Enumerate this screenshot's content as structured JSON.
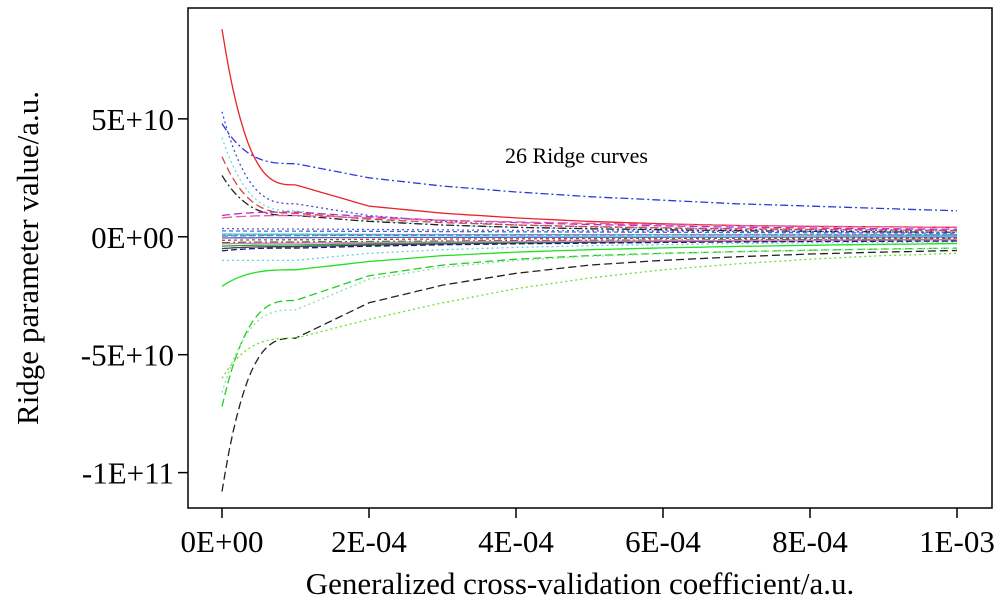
{
  "chart_data": {
    "type": "line",
    "title": "",
    "xlabel": "Generalized cross-validation coefficient/a.u.",
    "ylabel": "Ridge parameter value/a.u.",
    "annotation": "26 Ridge curves",
    "xlim": [
      0,
      0.001
    ],
    "ylim": [
      -115000000000,
      97000000000
    ],
    "x_ticks": [
      0,
      0.0002,
      0.0004,
      0.0006,
      0.0008,
      0.001
    ],
    "x_tick_labels": [
      "0E+00",
      "2E-04",
      "4E-04",
      "6E-04",
      "8E-04",
      "1E-03"
    ],
    "y_ticks": [
      50000000000,
      0,
      -50000000000,
      -100000000000
    ],
    "y_tick_labels": [
      "5E+10",
      "0E+00",
      "-5E+10",
      "-1E+11"
    ],
    "grid": false,
    "legend": "none",
    "x": [
      0,
      0.0001,
      0.0002,
      0.0003,
      0.0004,
      0.0005,
      0.0006,
      0.0007,
      0.0008,
      0.0009,
      0.001
    ],
    "series": [
      {
        "color": "#e8232a",
        "dash": "solid",
        "values": [
          88000000000.0,
          22000000000.0,
          13000000000.0,
          10000000000.0,
          8000000000.0,
          6500000000.0,
          5500000000.0,
          4800000000.0,
          4400000000.0,
          4200000000.0,
          4000000000.0
        ]
      },
      {
        "color": "#2b3bd6",
        "dash": "8,3,2,3",
        "values": [
          48000000000.0,
          31000000000.0,
          25000000000.0,
          21500000000.0,
          19000000000.0,
          17000000000.0,
          15500000000.0,
          14000000000.0,
          13000000000.0,
          12000000000.0,
          11000000000.0
        ]
      },
      {
        "color": "#3d4fd8",
        "dash": "2,3",
        "values": [
          53000000000.0,
          14000000000.0,
          9000000000.0,
          6500000000.0,
          5000000000.0,
          4200000000.0,
          3600000000.0,
          3200000000.0,
          2900000000.0,
          2700000000.0,
          2500000000.0
        ]
      },
      {
        "color": "#66dde0",
        "dash": "2,3",
        "values": [
          42000000000.0,
          11000000000.0,
          7000000000.0,
          5000000000.0,
          4000000000.0,
          3300000000.0,
          2800000000.0,
          2400000000.0,
          2100000000.0,
          1900000000.0,
          1700000000.0
        ]
      },
      {
        "color": "#e0403f",
        "dash": "8,4",
        "values": [
          34000000000.0,
          10000000000.0,
          7500000000.0,
          6000000000.0,
          5000000000.0,
          4300000000.0,
          3800000000.0,
          3400000000.0,
          3100000000.0,
          2900000000.0,
          2700000000.0
        ]
      },
      {
        "color": "#222222",
        "dash": "8,3,2,3",
        "values": [
          26000000000.0,
          9000000000.0,
          6500000000.0,
          5000000000.0,
          4000000000.0,
          3400000000.0,
          3000000000.0,
          2600000000.0,
          2300000000.0,
          2100000000.0,
          1900000000.0
        ]
      },
      {
        "color": "#b030c8",
        "dash": "8,4",
        "values": [
          9000000000.0,
          10500000000.0,
          8500000000.0,
          7000000000.0,
          6000000000.0,
          5200000000.0,
          4600000000.0,
          4100000000.0,
          3700000000.0,
          3400000000.0,
          3200000000.0
        ]
      },
      {
        "color": "#e85aa0",
        "dash": "10,4",
        "values": [
          8000000000.0,
          9000000000.0,
          8000000000.0,
          7000000000.0,
          6300000000.0,
          5700000000.0,
          5200000000.0,
          4800000000.0,
          4500000000.0,
          4200000000.0,
          4000000000.0
        ]
      },
      {
        "color": "#444444",
        "dash": "solid",
        "values": [
          -5000000000.0,
          -4200000000.0,
          -3500000000.0,
          -3000000000.0,
          -2600000000.0,
          -2300000000.0,
          -2000000000.0,
          -1800000000.0,
          -1600000000.0,
          -1400000000.0,
          -1200000000.0
        ]
      },
      {
        "color": "#2f9c4a",
        "dash": "solid",
        "values": [
          -4000000000.0,
          -3500000000.0,
          -3000000000.0,
          -2600000000.0,
          -2300000000.0,
          -2000000000.0,
          -1800000000.0,
          -1600000000.0,
          -1400000000.0,
          -1300000000.0,
          -1200000000.0
        ]
      },
      {
        "color": "#5ad4e0",
        "dash": "2,3",
        "values": [
          -10000000000.0,
          -10000000000.0,
          -7000000000.0,
          -5500000000.0,
          -4500000000.0,
          -3800000000.0,
          -3300000000.0,
          -2900000000.0,
          -2600000000.0,
          -2400000000.0,
          -2200000000.0
        ]
      },
      {
        "color": "#20e020",
        "dash": "solid",
        "values": [
          -21000000000.0,
          -14000000000.0,
          -10500000000.0,
          -8000000000.0,
          -6500000000.0,
          -5500000000.0,
          -4700000000.0,
          -4100000000.0,
          -3600000000.0,
          -3200000000.0,
          -2900000000.0
        ]
      },
      {
        "color": "#20d020",
        "dash": "8,4",
        "values": [
          -72000000000.0,
          -27000000000.0,
          -16500000000.0,
          -12000000000.0,
          -9500000000.0,
          -8000000000.0,
          -7000000000.0,
          -6300000000.0,
          -5700000000.0,
          -5200000000.0,
          -4800000000.0
        ]
      },
      {
        "color": "#90e0a0",
        "dash": "2,3",
        "values": [
          -66000000000.0,
          -31000000000.0,
          -18000000000.0,
          -13000000000.0,
          -10000000000.0,
          -8300000000.0,
          -7200000000.0,
          -6400000000.0,
          -5800000000.0,
          -5300000000.0,
          -4900000000.0
        ]
      },
      {
        "color": "#222222",
        "dash": "8,4",
        "values": [
          -108000000000.0,
          -43000000000.0,
          -28000000000.0,
          -20500000000.0,
          -15500000000.0,
          -12000000000.0,
          -10000000000.0,
          -8500000000.0,
          -7300000000.0,
          -6500000000.0,
          -5800000000.0
        ]
      },
      {
        "color": "#6ae030",
        "dash": "2,3",
        "values": [
          -60000000000.0,
          -43000000000.0,
          -35000000000.0,
          -28000000000.0,
          -22000000000.0,
          -17500000000.0,
          -14000000000.0,
          -11500000000.0,
          -9500000000.0,
          -8000000000.0,
          -7000000000.0
        ]
      },
      {
        "color": "#3a6be0",
        "dash": "4,3",
        "values": [
          2500000000.0,
          2400000000.0,
          2300000000.0,
          2200000000.0,
          2100000000.0,
          2000000000.0,
          1900000000.0,
          1800000000.0,
          1700000000.0,
          1600000000.0,
          1500000000.0
        ]
      },
      {
        "color": "#40c8d8",
        "dash": "solid",
        "values": [
          1200000000.0,
          1100000000.0,
          1000000000.0,
          950000000.0,
          900000000.0,
          850000000.0,
          800000000.0,
          750000000.0,
          700000000.0,
          650000000.0,
          600000000.0
        ]
      },
      {
        "color": "#d040a0",
        "dash": "6,3",
        "values": [
          300000000.0,
          500000000.0,
          600000000.0,
          650000000.0,
          700000000.0,
          720000000.0,
          740000000.0,
          750000000.0,
          760000000.0,
          770000000.0,
          780000000.0
        ]
      },
      {
        "color": "#2a6fd0",
        "dash": "solid",
        "values": [
          -500000000.0,
          -400000000.0,
          -300000000.0,
          -250000000.0,
          -200000000.0,
          -180000000.0,
          -160000000.0,
          -140000000.0,
          -120000000.0,
          -100000000.0,
          -80000000.0
        ]
      },
      {
        "color": "#d03030",
        "dash": "3,3",
        "values": [
          -1500000000.0,
          -1300000000.0,
          -1100000000.0,
          -950000000.0,
          -850000000.0,
          -780000000.0,
          -720000000.0,
          -670000000.0,
          -630000000.0,
          -600000000.0,
          -570000000.0
        ]
      },
      {
        "color": "#208040",
        "dash": "8,3,2,3",
        "values": [
          -2500000000.0,
          -2200000000.0,
          -2000000000.0,
          -1800000000.0,
          -1650000000.0,
          -1500000000.0,
          -1400000000.0,
          -1300000000.0,
          -1200000000.0,
          -1100000000.0,
          -1000000000.0
        ]
      },
      {
        "color": "#7050d0",
        "dash": "2,3",
        "values": [
          3500000000.0,
          3300000000.0,
          3100000000.0,
          2900000000.0,
          2700000000.0,
          2550000000.0,
          2400000000.0,
          2300000000.0,
          2200000000.0,
          2100000000.0,
          2000000000.0
        ]
      },
      {
        "color": "#e87ab8",
        "dash": "solid",
        "values": [
          -3000000000.0,
          -2700000000.0,
          -2400000000.0,
          -2200000000.0,
          -2000000000.0,
          -1850000000.0,
          -1700000000.0,
          -1600000000.0,
          -1500000000.0,
          -1400000000.0,
          -1300000000.0
        ]
      },
      {
        "color": "#1a1a80",
        "dash": "6,3",
        "values": [
          -6000000000.0,
          -4800000000.0,
          -4000000000.0,
          -3400000000.0,
          -3000000000.0,
          -2700000000.0,
          -2400000000.0,
          -2200000000.0,
          -2000000000.0,
          -1900000000.0,
          -1800000000.0
        ]
      },
      {
        "color": "#30b0c0",
        "dash": "4,2",
        "values": [
          600000000.0,
          700000000.0,
          800000000.0,
          850000000.0,
          900000000.0,
          920000000.0,
          940000000.0,
          950000000.0,
          960000000.0,
          970000000.0,
          980000000.0
        ]
      }
    ]
  }
}
